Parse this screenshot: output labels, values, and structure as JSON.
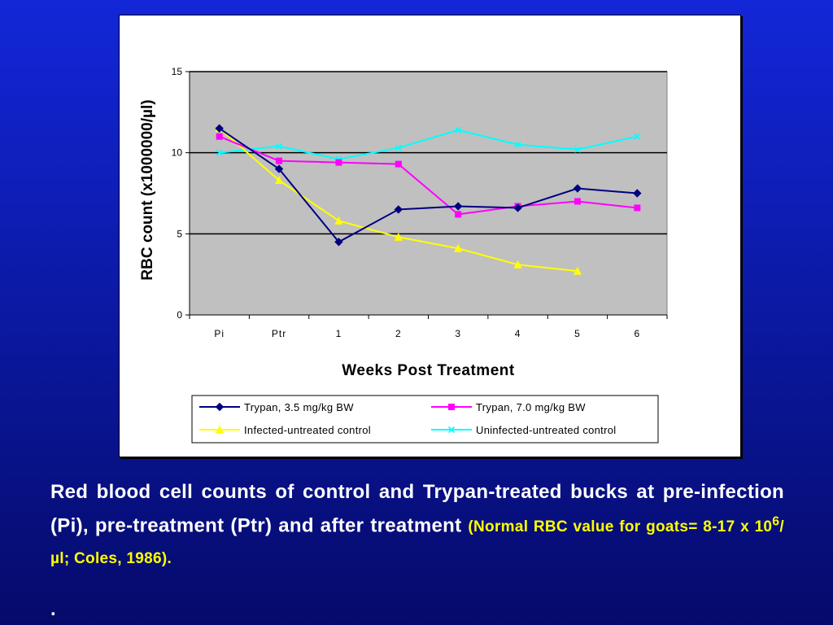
{
  "chart_data": {
    "type": "line",
    "xlabel": "Weeks Post Treatment",
    "ylabel": "RBC count (x1000000/µl)",
    "categories": [
      "Pi",
      "Ptr",
      "1",
      "2",
      "3",
      "4",
      "5",
      "6"
    ],
    "ylim": [
      0,
      15
    ],
    "yticks": [
      0,
      5,
      10,
      15
    ],
    "grid": true,
    "legend_position": "bottom",
    "plot_background": "#c0c0c0",
    "series": [
      {
        "name": "Trypan, 3.5 mg/kg BW",
        "color": "#000080",
        "marker": "diamond",
        "values": [
          11.5,
          9.0,
          4.5,
          6.5,
          6.7,
          6.6,
          7.8,
          7.5
        ]
      },
      {
        "name": "Trypan, 7.0 mg/kg BW",
        "color": "#ff00ff",
        "marker": "square",
        "values": [
          11.0,
          9.5,
          9.4,
          9.3,
          6.2,
          6.7,
          7.0,
          6.6
        ]
      },
      {
        "name": "Infected-untreated control",
        "color": "#ffff00",
        "marker": "triangle",
        "values": [
          11.5,
          8.3,
          5.8,
          4.8,
          4.1,
          3.1,
          2.7,
          null
        ]
      },
      {
        "name": "Uninfected-untreated control",
        "color": "#00ffff",
        "marker": "x",
        "values": [
          10.0,
          10.4,
          9.6,
          10.3,
          11.4,
          10.5,
          10.2,
          11.0
        ]
      }
    ]
  },
  "caption": {
    "main": "Red blood cell counts of control and Trypan-treated bucks at pre-infection (Pi), pre-treatment (Ptr) and after treatment",
    "note_prefix": "(Normal RBC value for goats=  8-17 x 10",
    "note_sup": "6",
    "note_suffix": "/µl; Coles, 1986).",
    "trailing": "."
  },
  "colors": {
    "background_top": "#1327d8",
    "background_bottom": "#050a6a",
    "caption_text": "#ffffff",
    "caption_note": "#ffff00"
  }
}
